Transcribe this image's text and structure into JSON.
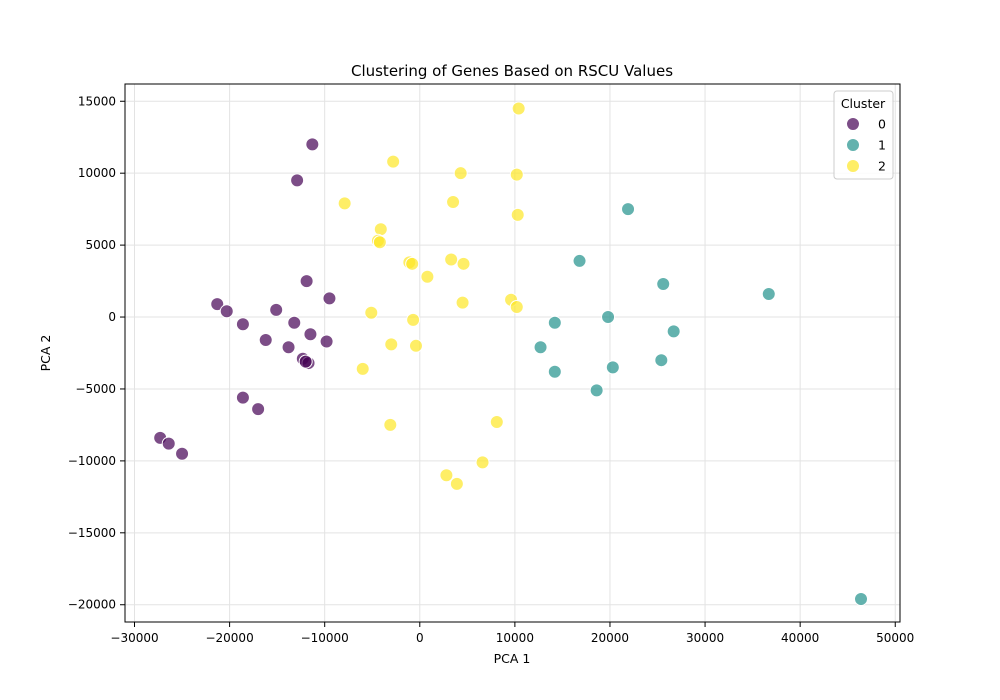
{
  "chart_data": {
    "type": "scatter",
    "title": "Clustering of Genes Based on RSCU Values",
    "xlabel": "PCA 1",
    "ylabel": "PCA 2",
    "xlim": [
      -31000,
      50500
    ],
    "ylim": [
      -21200,
      16200
    ],
    "xticks": [
      -30000,
      -20000,
      -10000,
      0,
      10000,
      20000,
      30000,
      40000,
      50000
    ],
    "xtick_labels": [
      "−30000",
      "−20000",
      "−10000",
      "0",
      "10000",
      "20000",
      "30000",
      "40000",
      "50000"
    ],
    "yticks": [
      -20000,
      -15000,
      -10000,
      -5000,
      0,
      5000,
      10000,
      15000
    ],
    "ytick_labels": [
      "−20000",
      "−15000",
      "−10000",
      "−5000",
      "0",
      "5000",
      "10000",
      "15000"
    ],
    "grid": true,
    "legend": {
      "title": "Cluster",
      "placement": "top-right"
    },
    "series": [
      {
        "name": "0",
        "color": "#440154",
        "points": [
          [
            -11300,
            12000
          ],
          [
            -12900,
            9500
          ],
          [
            -11900,
            2500
          ],
          [
            -9500,
            1300
          ],
          [
            -21300,
            900
          ],
          [
            -20300,
            400
          ],
          [
            -15100,
            500
          ],
          [
            -13200,
            -400
          ],
          [
            -18600,
            -500
          ],
          [
            -11500,
            -1200
          ],
          [
            -9800,
            -1700
          ],
          [
            -16200,
            -1600
          ],
          [
            -13800,
            -2100
          ],
          [
            -12300,
            -2900
          ],
          [
            -11700,
            -3200
          ],
          [
            -12000,
            -3100
          ],
          [
            -18600,
            -5600
          ],
          [
            -17000,
            -6400
          ],
          [
            -27300,
            -8400
          ],
          [
            -26400,
            -8800
          ],
          [
            -25000,
            -9500
          ]
        ]
      },
      {
        "name": "1",
        "color": "#21918c",
        "points": [
          [
            21900,
            7500
          ],
          [
            16800,
            3900
          ],
          [
            25600,
            2300
          ],
          [
            36700,
            1600
          ],
          [
            19800,
            0
          ],
          [
            14200,
            -400
          ],
          [
            26700,
            -1000
          ],
          [
            12700,
            -2100
          ],
          [
            25400,
            -3000
          ],
          [
            20300,
            -3500
          ],
          [
            14200,
            -3800
          ],
          [
            18600,
            -5100
          ],
          [
            46400,
            -19600
          ]
        ]
      },
      {
        "name": "2",
        "color": "#fde725",
        "points": [
          [
            10400,
            14500
          ],
          [
            -2800,
            10800
          ],
          [
            4300,
            10000
          ],
          [
            10200,
            9900
          ],
          [
            -7900,
            7900
          ],
          [
            3500,
            8000
          ],
          [
            10300,
            7100
          ],
          [
            -4100,
            6100
          ],
          [
            -4400,
            5300
          ],
          [
            -4200,
            5200
          ],
          [
            -1100,
            3800
          ],
          [
            -800,
            3700
          ],
          [
            3300,
            4000
          ],
          [
            4600,
            3700
          ],
          [
            800,
            2800
          ],
          [
            9600,
            1200
          ],
          [
            4500,
            1000
          ],
          [
            10200,
            700
          ],
          [
            -5100,
            300
          ],
          [
            -700,
            -200
          ],
          [
            -3000,
            -1900
          ],
          [
            -400,
            -2000
          ],
          [
            -6000,
            -3600
          ],
          [
            -3100,
            -7500
          ],
          [
            8100,
            -7300
          ],
          [
            6600,
            -10100
          ],
          [
            2800,
            -11000
          ],
          [
            3900,
            -11600
          ]
        ]
      }
    ]
  }
}
